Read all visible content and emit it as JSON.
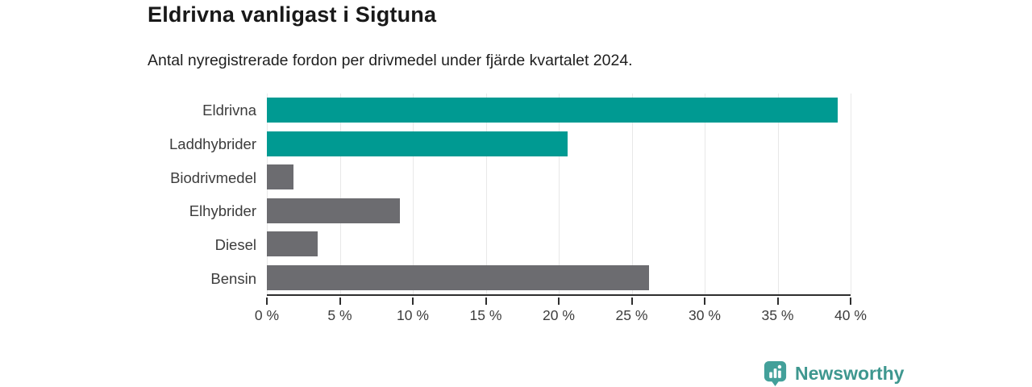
{
  "header": {
    "title": "Eldrivna vanligast i Sigtuna",
    "subtitle": "Antal nyregistrerade fordon per drivmedel under fjärde kvartalet 2024."
  },
  "chart_data": {
    "type": "bar",
    "orientation": "horizontal",
    "title": "Eldrivna vanligast i Sigtuna",
    "subtitle": "Antal nyregistrerade fordon per drivmedel under fjärde kvartalet 2024.",
    "categories": [
      "Eldrivna",
      "Laddhybrider",
      "Biodrivmedel",
      "Elhybrider",
      "Diesel",
      "Bensin"
    ],
    "values": [
      39.1,
      20.6,
      1.8,
      9.1,
      3.5,
      26.2
    ],
    "bar_colors": [
      "#009a92",
      "#009a92",
      "#6c6c70",
      "#6c6c70",
      "#6c6c70",
      "#6c6c70"
    ],
    "highlight_color": "#009a92",
    "default_color": "#6c6c70",
    "xlabel": "",
    "ylabel": "",
    "xlim": [
      0,
      40
    ],
    "x_tick_values": [
      0,
      5,
      10,
      15,
      20,
      25,
      30,
      35,
      40
    ],
    "x_tick_labels": [
      "0 %",
      "5 %",
      "10 %",
      "15 %",
      "20 %",
      "25 %",
      "30 %",
      "35 %",
      "40 %"
    ],
    "grid": true,
    "gridline_color": "#e8e8e8",
    "axis_color": "#2e2e2e",
    "legend_position": "none"
  },
  "branding": {
    "logo_text": "Newsworthy",
    "logo_color": "#3E978F",
    "logo_icon_color": "#43A09A",
    "logo_icon": "newsworthy-bar-chart-bubble-icon"
  }
}
